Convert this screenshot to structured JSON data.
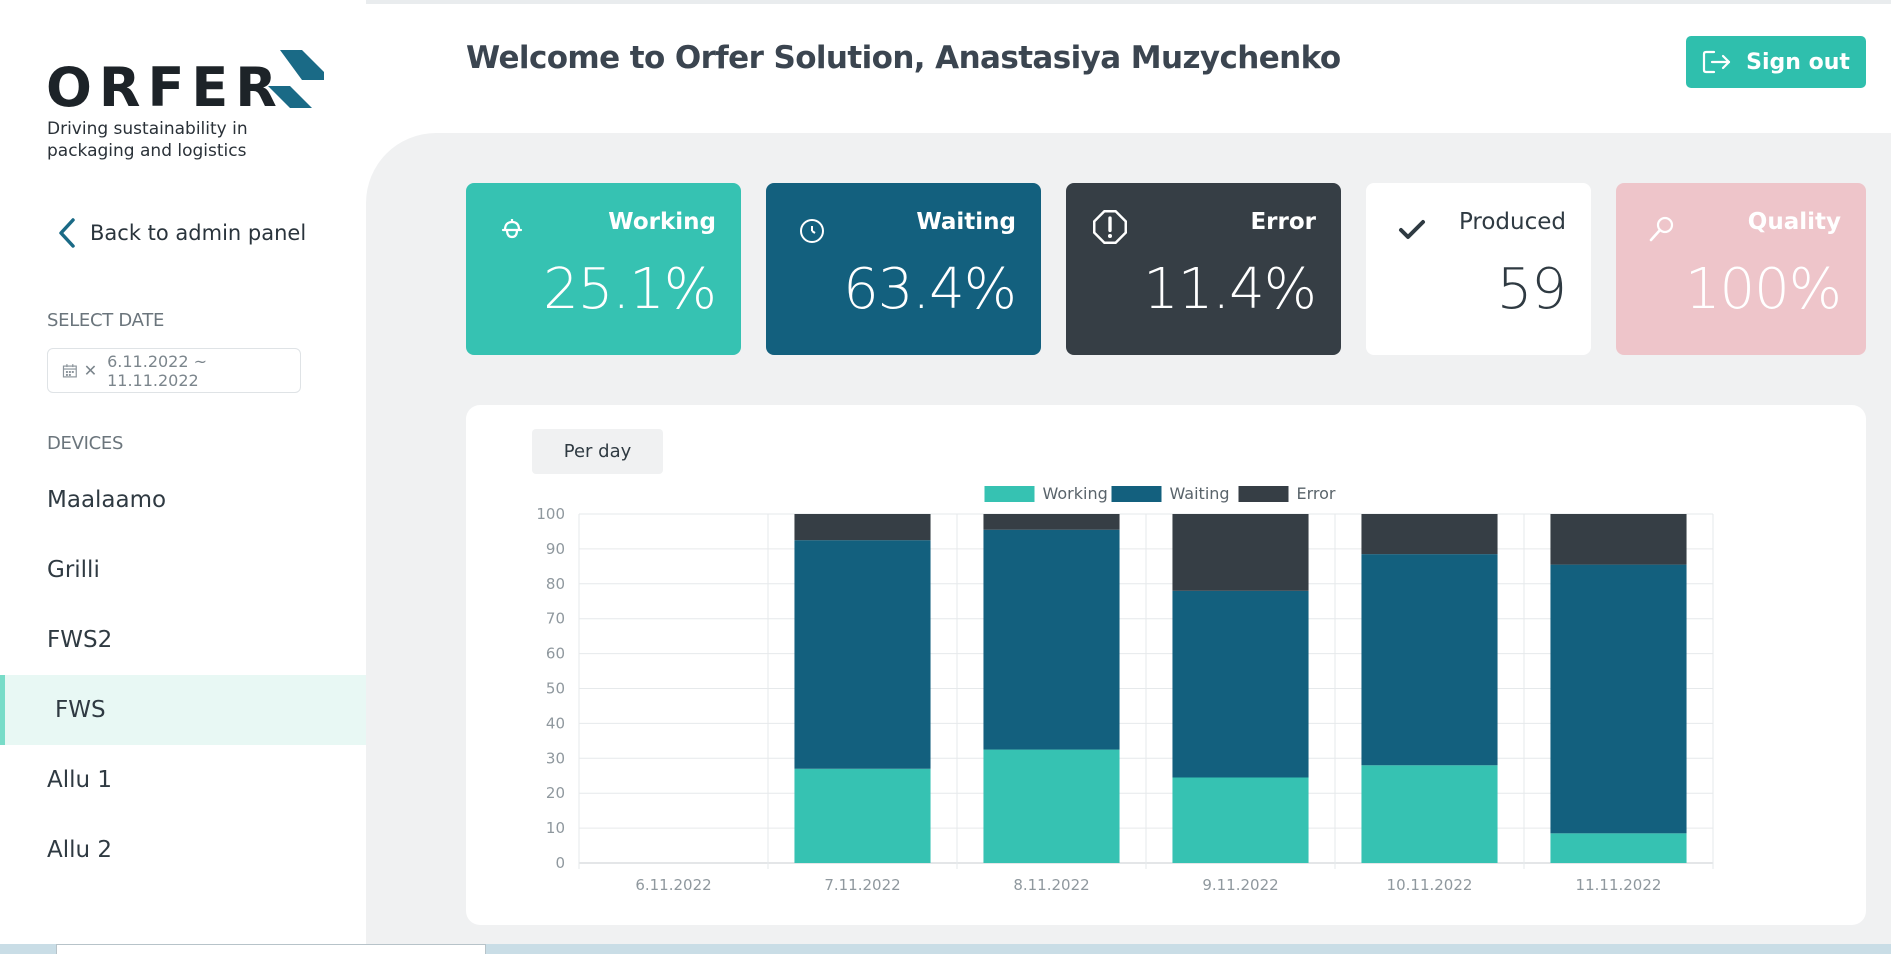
{
  "sidebar": {
    "logo": {
      "word": "ORFER",
      "tagline": "Driving sustainability in packaging and logistics"
    },
    "back_label": "Back to admin panel",
    "select_date_label": "SELECT DATE",
    "date_range": "6.11.2022 ~ 11.11.2022",
    "devices_label": "DEVICES",
    "devices": [
      {
        "label": "Maalaamo",
        "active": false
      },
      {
        "label": "Grilli",
        "active": false
      },
      {
        "label": "FWS2",
        "active": false
      },
      {
        "label": "FWS",
        "active": true
      },
      {
        "label": "Allu 1",
        "active": false
      },
      {
        "label": "Allu 2",
        "active": false
      }
    ]
  },
  "header": {
    "welcome": "Welcome to Orfer Solution, Anastasiya Muzychenko",
    "signout_label": "Sign out"
  },
  "cards": {
    "working": {
      "title": "Working",
      "value": "25.1%",
      "color": "#36c2b2",
      "icon": "helmet-icon"
    },
    "waiting": {
      "title": "Waiting",
      "value": "63.4%",
      "color": "#13607e",
      "icon": "clock-icon"
    },
    "error": {
      "title": "Error",
      "value": "11.4%",
      "color": "#363e45",
      "icon": "alert-icon"
    },
    "produced": {
      "title": "Produced",
      "value": "59",
      "color": "#ffffff",
      "icon": "check-icon"
    },
    "quality": {
      "title": "Quality",
      "value": "100%",
      "color": "#eec5ca",
      "icon": "search-icon"
    }
  },
  "chart": {
    "toggle_label": "Per day"
  },
  "chart_data": {
    "type": "bar",
    "stacked": true,
    "categories": [
      "6.11.2022",
      "7.11.2022",
      "8.11.2022",
      "9.11.2022",
      "10.11.2022",
      "11.11.2022"
    ],
    "series": [
      {
        "name": "Working",
        "color": "#36c2b2",
        "values": [
          0,
          27,
          32.5,
          24.5,
          28,
          8.5
        ]
      },
      {
        "name": "Waiting",
        "color": "#13607e",
        "values": [
          0,
          65.5,
          63,
          53.5,
          60.5,
          77
        ]
      },
      {
        "name": "Error",
        "color": "#363e45",
        "values": [
          0,
          7.5,
          4.5,
          22,
          11.5,
          14.5
        ]
      }
    ],
    "ylim": [
      0,
      100
    ],
    "yticks": [
      "0",
      "10",
      "20",
      "30",
      "40",
      "50",
      "60",
      "70",
      "80",
      "90",
      "100"
    ],
    "grid": true,
    "legend": "top-center"
  }
}
